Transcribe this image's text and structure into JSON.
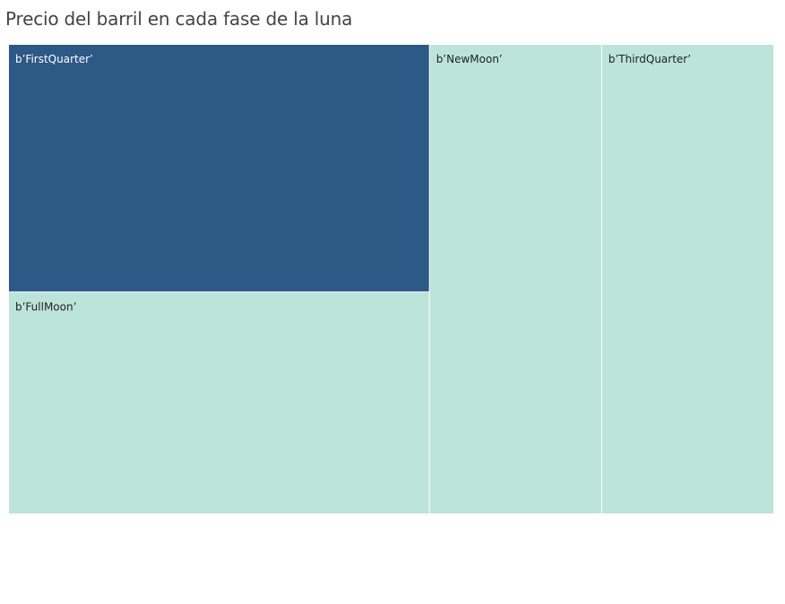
{
  "page": {
    "title": "Precio del barril en cada fase de la luna"
  },
  "chart_data": {
    "type": "treemap",
    "title": "Precio del barril en cada fase de la luna",
    "tiles": [
      {
        "label": "b’FirstQuarter’",
        "value": 0.29,
        "color": "#2c5985",
        "text_color": "#ffffff"
      },
      {
        "label": "b’FullMoon’",
        "value": 0.26,
        "color": "#bde4da",
        "text_color": "#222222"
      },
      {
        "label": "b’NewMoon’",
        "value": 0.225,
        "color": "#bde4da",
        "text_color": "#222222"
      },
      {
        "label": "b’ThirdQuarter’",
        "value": 0.225,
        "color": "#bde4da",
        "text_color": "#222222"
      }
    ]
  }
}
